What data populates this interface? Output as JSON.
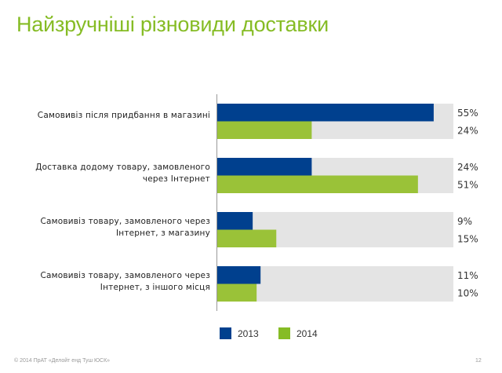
{
  "page": {
    "title": "Найзручніші різновиди доставки",
    "footer": "© 2014 ПрАТ «Делойт енд Туш ЮСК»",
    "page_number": "12"
  },
  "colors": {
    "title": "#86bc25",
    "series_2013": "#00408e",
    "series_2014": "#9ac238",
    "track": "#e4e4e4"
  },
  "chart_data": {
    "type": "bar",
    "orientation": "horizontal",
    "title": "Найзручніші різновиди доставки",
    "xlabel": "",
    "ylabel": "",
    "xlim": [
      0,
      60
    ],
    "grid": false,
    "legend": "bottom",
    "categories": [
      [
        "Самовивіз після придбання в магазині"
      ],
      [
        "Доставка додому товару, замовленого",
        "через Інтернет"
      ],
      [
        "Самовивіз товару, замовленого через",
        "Інтернет, з магазину"
      ],
      [
        "Самовивіз товару, замовленого через",
        "Інтернет, з іншого місця"
      ]
    ],
    "series": [
      {
        "name": "2013",
        "values": [
          55,
          24,
          9,
          11
        ],
        "labels": [
          "55%",
          "24%",
          "9%",
          "11%"
        ]
      },
      {
        "name": "2014",
        "values": [
          24,
          51,
          15,
          10
        ],
        "labels": [
          "24%",
          "51%",
          "15%",
          "10%"
        ]
      }
    ]
  },
  "legend": {
    "items": [
      {
        "label": "2013"
      },
      {
        "label": "2014"
      }
    ]
  }
}
